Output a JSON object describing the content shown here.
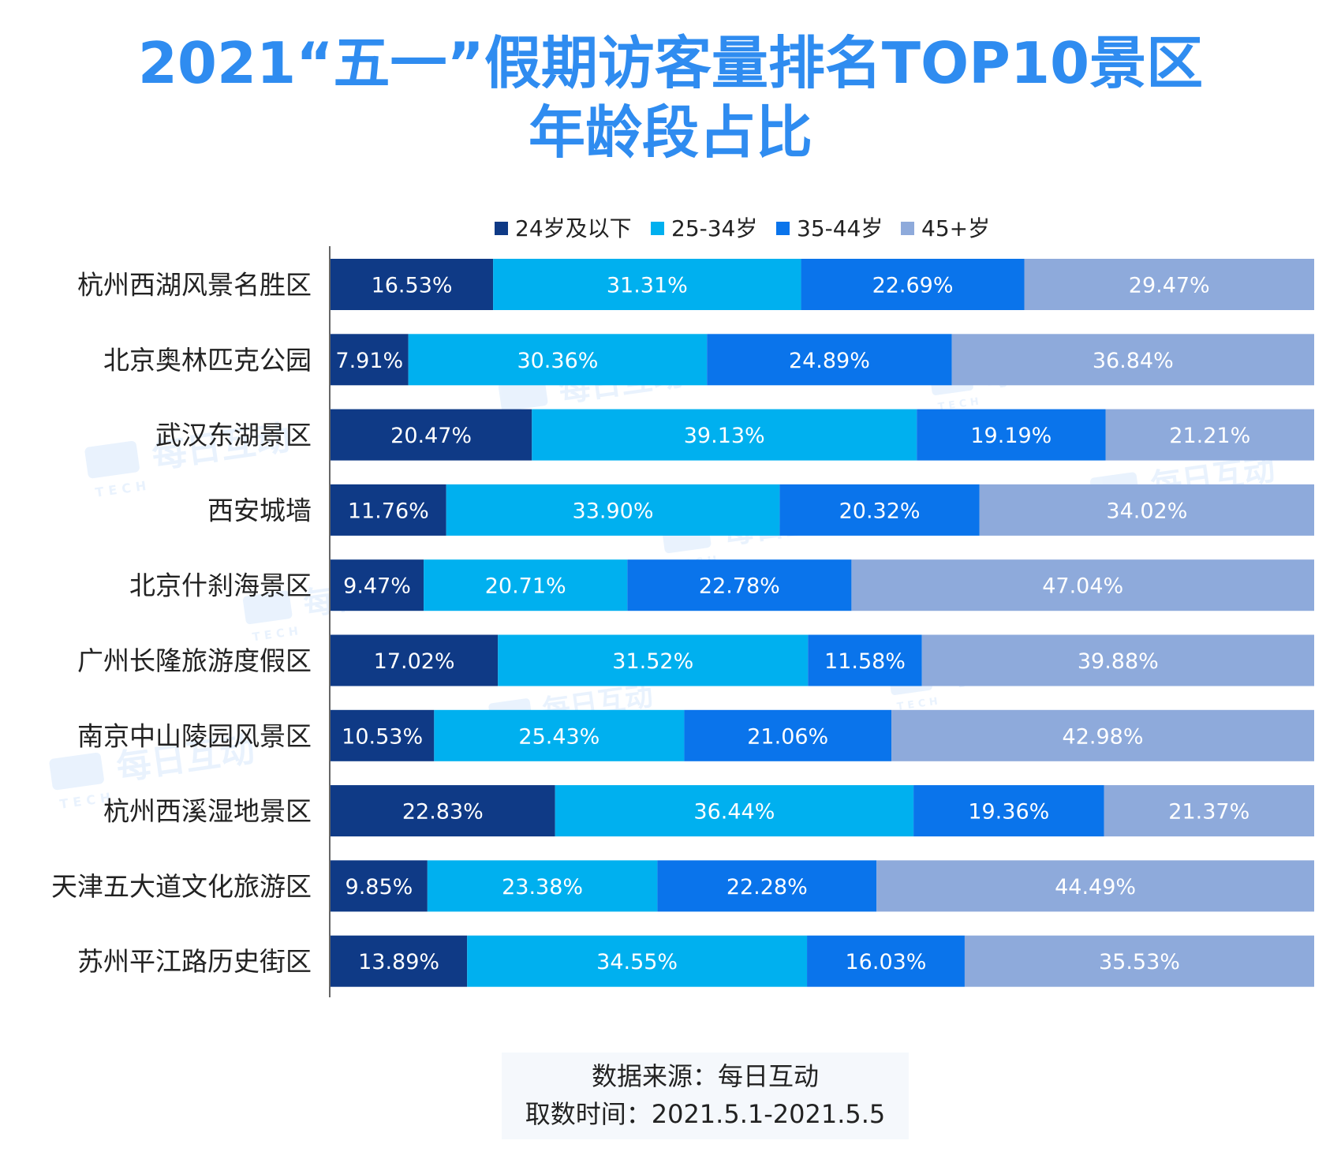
{
  "title": {
    "line1": "2021“五一”假期访客量排名TOP10景区",
    "line2": "年龄段占比"
  },
  "source": {
    "line1": "数据来源：每日互动",
    "line2": "取数时间：2021.5.1-2021.5.5"
  },
  "watermark": {
    "text": "每日互动",
    "sub": "TECH"
  },
  "colors": {
    "title": "#2f8cf0",
    "series": [
      "#0f3a86",
      "#00b0ef",
      "#0a74eb",
      "#8eaadb"
    ],
    "axis": "#666666",
    "category_text": "#222222",
    "value_text": "#ffffff"
  },
  "chart_data": {
    "type": "bar",
    "orientation": "horizontal",
    "stacked": "percent",
    "legend_position": "top",
    "categories": [
      "杭州西湖风景名胜区",
      "北京奥林匹克公园",
      "武汉东湖景区",
      "西安城墙",
      "北京什刹海景区",
      "广州长隆旅游度假区",
      "南京中山陵园风景区",
      "杭州西溪湿地景区",
      "天津五大道文化旅游区",
      "苏州平江路历史街区"
    ],
    "series": [
      {
        "name": "24岁及以下",
        "values": [
          16.53,
          7.91,
          20.47,
          11.76,
          9.47,
          17.02,
          10.53,
          22.83,
          9.85,
          13.89
        ],
        "labels": [
          "16.53%",
          "7.91%",
          "20.47%",
          "11.76%",
          "9.47%",
          "17.02%",
          "10.53%",
          "22.83%",
          "9.85%",
          "13.89%"
        ]
      },
      {
        "name": "25-34岁",
        "values": [
          31.31,
          30.36,
          39.13,
          33.9,
          20.71,
          31.52,
          25.43,
          36.44,
          23.38,
          34.55
        ],
        "labels": [
          "31.31%",
          "30.36%",
          "39.13%",
          "33.90%",
          "20.71%",
          "31.52%",
          "25.43%",
          "36.44%",
          "23.38%",
          "34.55%"
        ]
      },
      {
        "name": "35-44岁",
        "values": [
          22.69,
          24.89,
          19.19,
          20.32,
          22.78,
          11.58,
          21.06,
          19.36,
          22.28,
          16.03
        ],
        "labels": [
          "22.69%",
          "24.89%",
          "19.19%",
          "20.32%",
          "22.78%",
          "11.58%",
          "21.06%",
          "19.36%",
          "22.28%",
          "16.03%"
        ]
      },
      {
        "name": "45+岁",
        "values": [
          29.47,
          36.84,
          21.21,
          34.02,
          47.04,
          39.88,
          42.98,
          21.37,
          44.49,
          35.53
        ],
        "labels": [
          "29.47%",
          "36.84%",
          "21.21%",
          "34.02%",
          "47.04%",
          "39.88%",
          "42.98%",
          "21.37%",
          "44.49%",
          "35.53%"
        ]
      }
    ],
    "xlim": [
      0,
      100
    ]
  }
}
